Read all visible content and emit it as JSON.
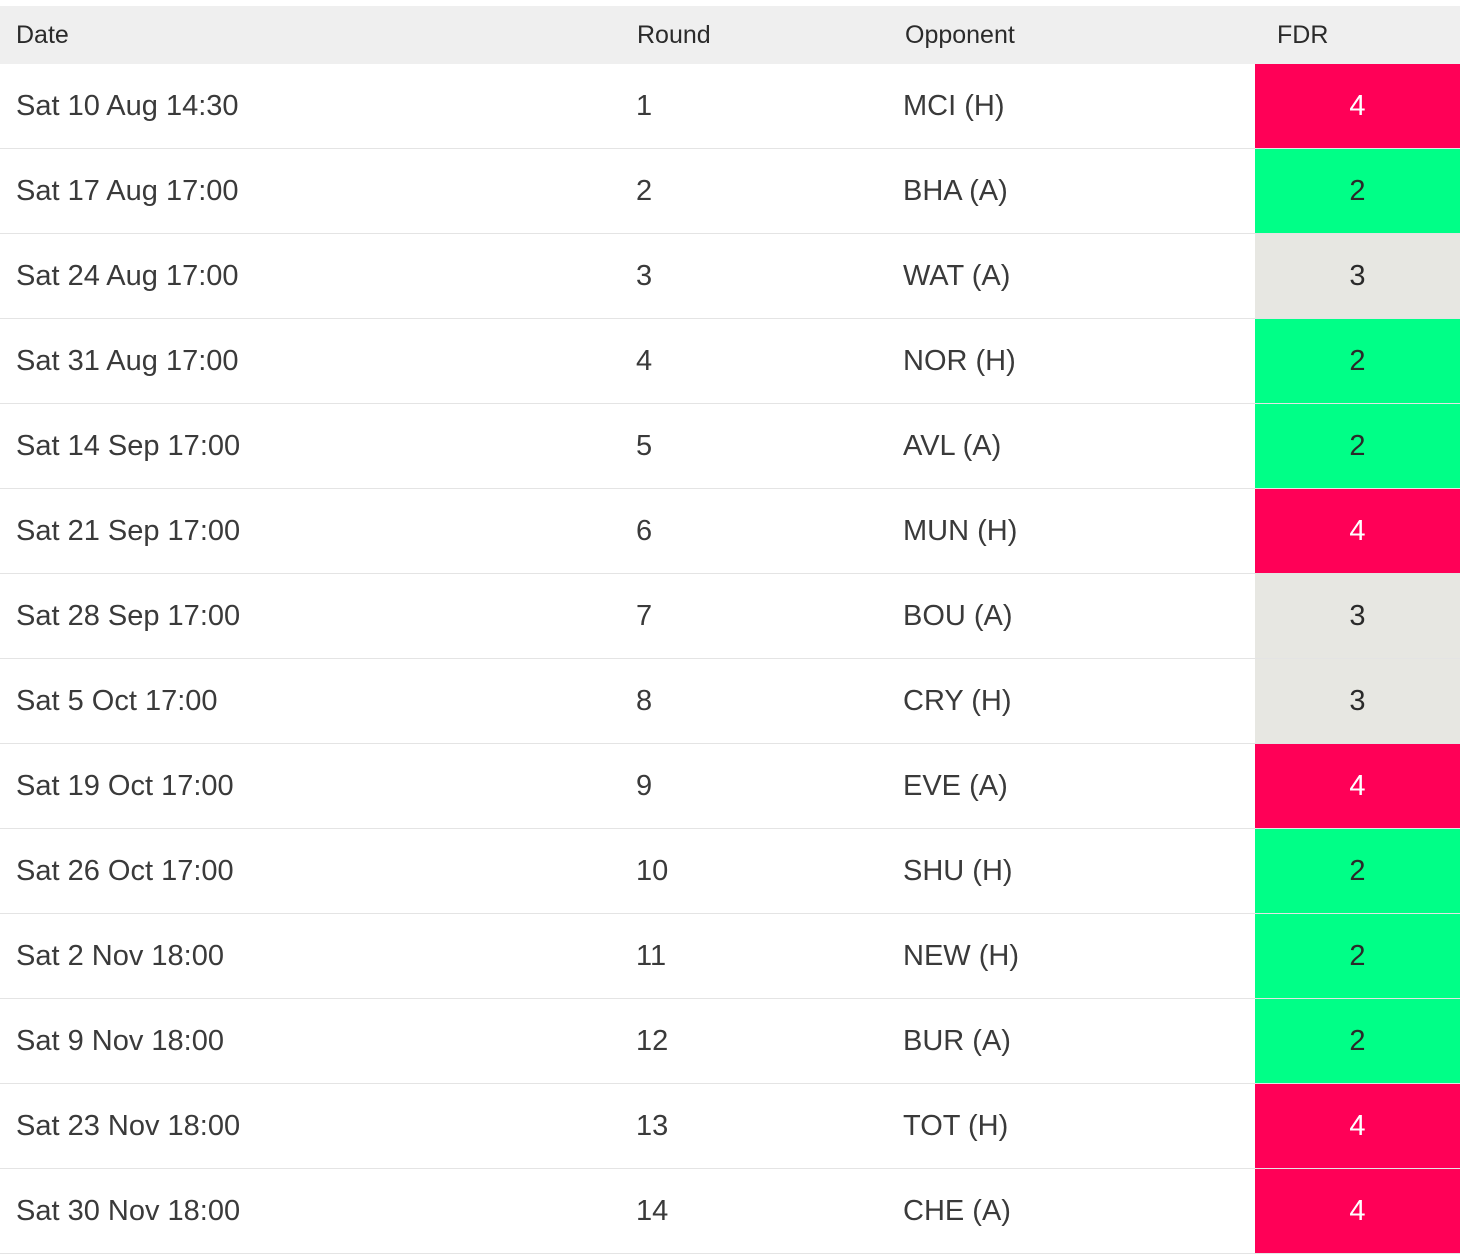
{
  "table": {
    "headers": {
      "date": "Date",
      "round": "Round",
      "opponent": "Opponent",
      "fdr": "FDR"
    },
    "fdr_colors": {
      "2": "#00ff87",
      "3": "#e7e7e2",
      "4": "#ff0057"
    },
    "rows": [
      {
        "date": "Sat 10 Aug 14:30",
        "round": "1",
        "opponent": "MCI (H)",
        "fdr": "4"
      },
      {
        "date": "Sat 17 Aug 17:00",
        "round": "2",
        "opponent": "BHA (A)",
        "fdr": "2"
      },
      {
        "date": "Sat 24 Aug 17:00",
        "round": "3",
        "opponent": "WAT (A)",
        "fdr": "3"
      },
      {
        "date": "Sat 31 Aug 17:00",
        "round": "4",
        "opponent": "NOR (H)",
        "fdr": "2"
      },
      {
        "date": "Sat 14 Sep 17:00",
        "round": "5",
        "opponent": "AVL (A)",
        "fdr": "2"
      },
      {
        "date": "Sat 21 Sep 17:00",
        "round": "6",
        "opponent": "MUN (H)",
        "fdr": "4"
      },
      {
        "date": "Sat 28 Sep 17:00",
        "round": "7",
        "opponent": "BOU (A)",
        "fdr": "3"
      },
      {
        "date": "Sat 5 Oct 17:00",
        "round": "8",
        "opponent": "CRY (H)",
        "fdr": "3"
      },
      {
        "date": "Sat 19 Oct 17:00",
        "round": "9",
        "opponent": "EVE (A)",
        "fdr": "4"
      },
      {
        "date": "Sat 26 Oct 17:00",
        "round": "10",
        "opponent": "SHU (H)",
        "fdr": "2"
      },
      {
        "date": "Sat 2 Nov 18:00",
        "round": "11",
        "opponent": "NEW (H)",
        "fdr": "2"
      },
      {
        "date": "Sat 9 Nov 18:00",
        "round": "12",
        "opponent": "BUR (A)",
        "fdr": "2"
      },
      {
        "date": "Sat 23 Nov 18:00",
        "round": "13",
        "opponent": "TOT (H)",
        "fdr": "4"
      },
      {
        "date": "Sat 30 Nov 18:00",
        "round": "14",
        "opponent": "CHE (A)",
        "fdr": "4"
      }
    ]
  }
}
